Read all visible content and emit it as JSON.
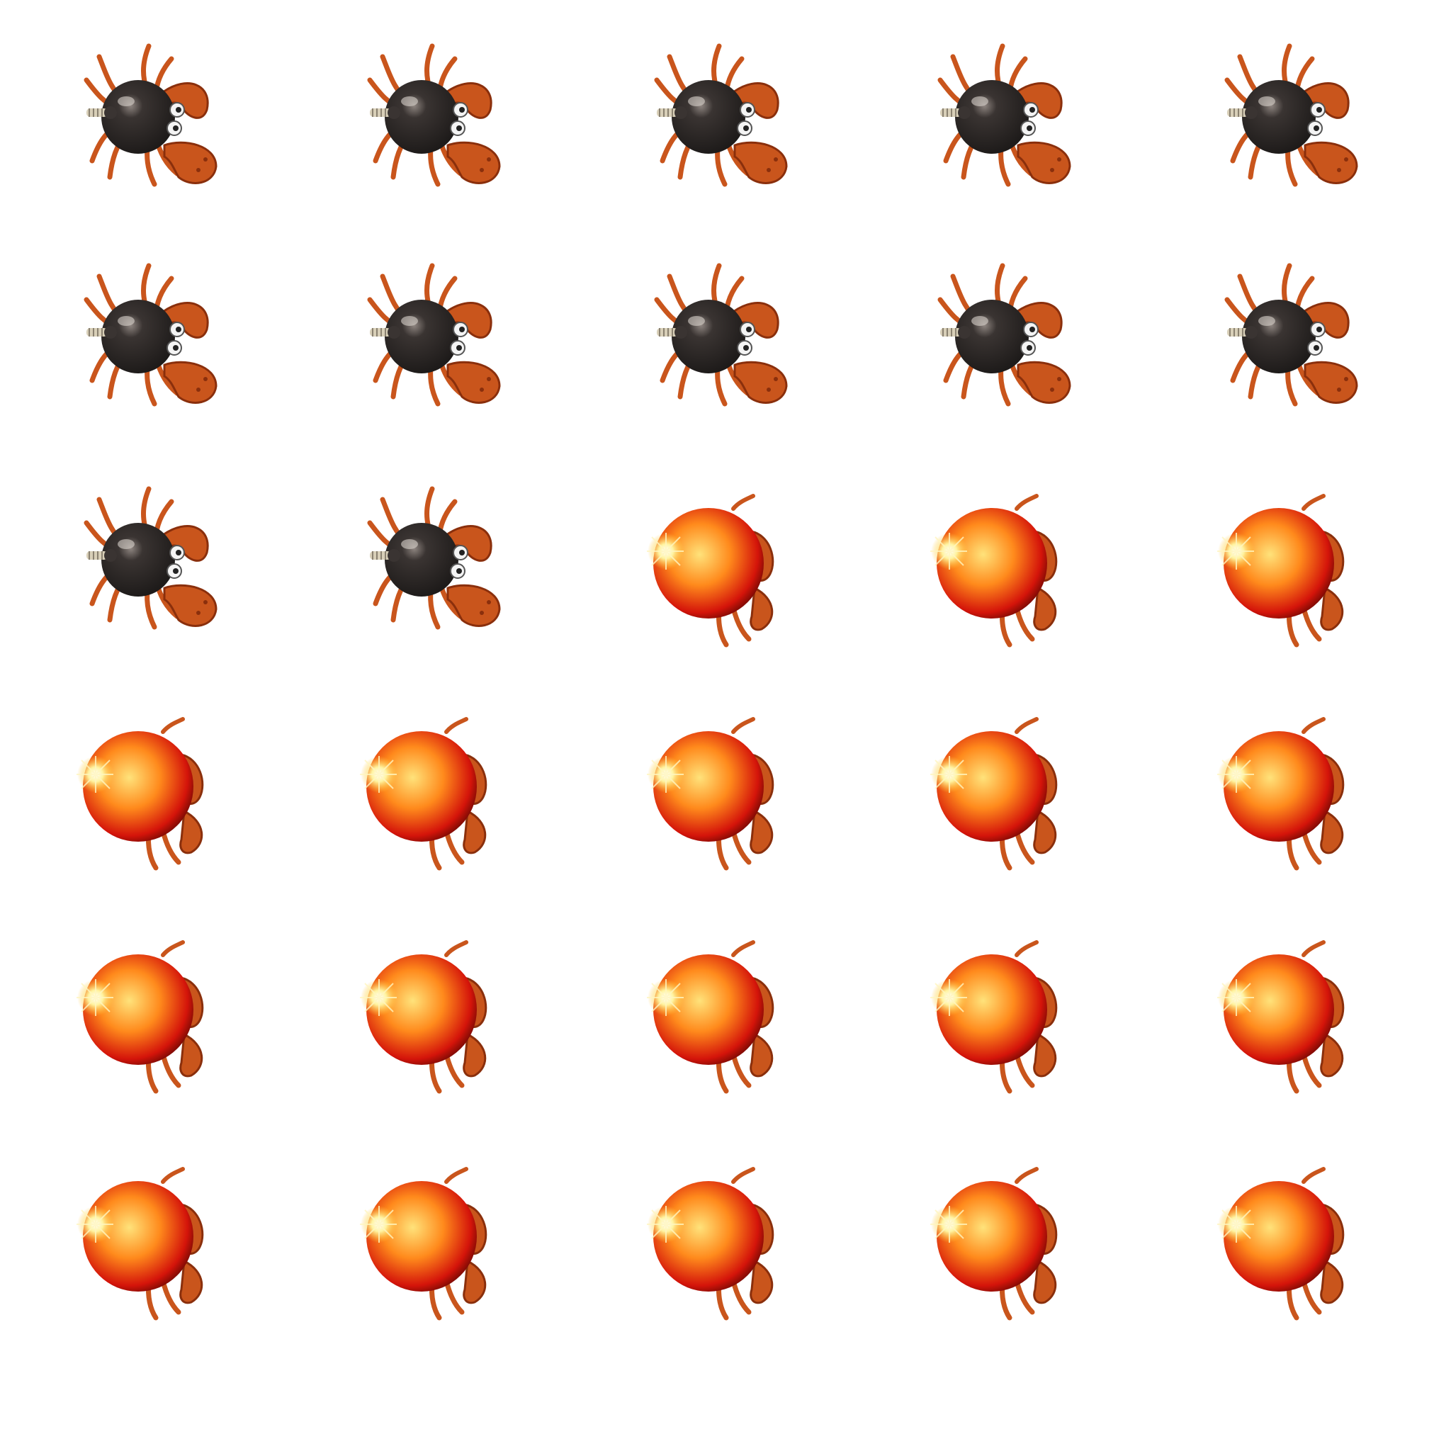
{
  "sprite_sheet": {
    "columns": 5,
    "rows": 6,
    "background": "#ffffff",
    "frames": [
      {
        "state": "idle"
      },
      {
        "state": "idle"
      },
      {
        "state": "idle"
      },
      {
        "state": "idle"
      },
      {
        "state": "idle"
      },
      {
        "state": "idle"
      },
      {
        "state": "idle"
      },
      {
        "state": "idle"
      },
      {
        "state": "idle"
      },
      {
        "state": "idle"
      },
      {
        "state": "idle"
      },
      {
        "state": "idle"
      },
      {
        "state": "glow"
      },
      {
        "state": "glow"
      },
      {
        "state": "glow"
      },
      {
        "state": "glow"
      },
      {
        "state": "glow"
      },
      {
        "state": "glow"
      },
      {
        "state": "glow"
      },
      {
        "state": "glow"
      },
      {
        "state": "glow"
      },
      {
        "state": "glow"
      },
      {
        "state": "glow"
      },
      {
        "state": "glow"
      },
      {
        "state": "glow"
      },
      {
        "state": "glow"
      },
      {
        "state": "glow"
      },
      {
        "state": "glow"
      },
      {
        "state": "glow"
      },
      {
        "state": "glow"
      }
    ]
  },
  "colors": {
    "bomb_body": "#1e1b1a",
    "crab_shell": "#c9551c",
    "crab_dark": "#8a2f0c",
    "glow_core": "#ffe27a",
    "glow_mid": "#ff8a1c",
    "glow_edge": "#d4140a",
    "fuse": "#d8cfb8"
  },
  "icons": {
    "idle": "crab-bomb-sprite-icon",
    "glow": "glowing-crab-bomb-sprite-icon"
  }
}
